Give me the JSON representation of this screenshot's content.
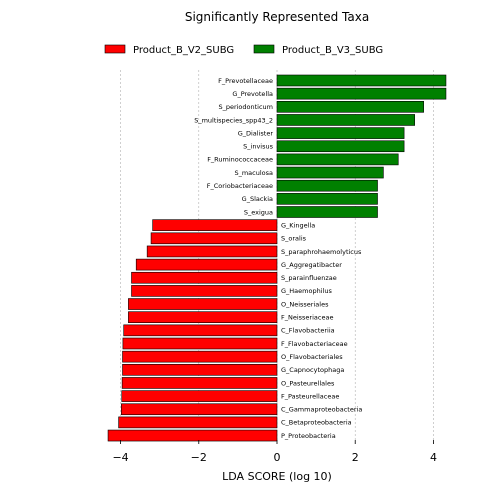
{
  "chart_data": {
    "type": "bar",
    "orientation": "horizontal",
    "title": "Significantly Represented Taxa",
    "xlabel": "LDA SCORE (log 10)",
    "ylabel": "",
    "xlim": [
      -4.5,
      4.5
    ],
    "xticks": [
      -4,
      -2,
      0,
      2,
      4
    ],
    "xtick_labels": [
      "−4",
      "−2",
      "0",
      "2",
      "4"
    ],
    "grid": "vertical dashed",
    "legend_position": "top",
    "series": [
      {
        "name": "Product_B_V2_SUBG",
        "color": "#ff0000",
        "categories": [
          "G_Kingella",
          "S_oralis",
          "S_paraphrohaemolyticus",
          "G_Aggregatibacter",
          "S_parainfluenzae",
          "G_Haemophilus",
          "O_Neisseriales",
          "F_Neisseriaceae",
          "C_Flavobacteriia",
          "F_Flavobacteriaceae",
          "O_Flavobacteriales",
          "G_Capnocytophaga",
          "O_Pasteurellales",
          "F_Pasteurellaceae",
          "C_Gammaproteobacteria",
          "C_Betaproteobacteria",
          "P_Proteobacteria"
        ],
        "values": [
          -3.18,
          -3.22,
          -3.32,
          -3.6,
          -3.72,
          -3.72,
          -3.8,
          -3.8,
          -3.92,
          -3.94,
          -3.95,
          -3.95,
          -3.96,
          -3.97,
          -3.98,
          -4.05,
          -4.32
        ]
      },
      {
        "name": "Product_B_V3_SUBG",
        "color": "#008000",
        "categories": [
          "F_Prevotellaceae",
          "G_Prevotella",
          "S_periodonticum",
          "S_multispecies_spp43_2",
          "G_Dialister",
          "S_invisus",
          "F_Ruminococcaceae",
          "S_maculosa",
          "F_Coriobacteriaceae",
          "G_Slackia",
          "S_exigua"
        ],
        "values": [
          4.32,
          4.32,
          3.75,
          3.52,
          3.25,
          3.25,
          3.1,
          2.72,
          2.57,
          2.57,
          2.57
        ]
      }
    ]
  }
}
